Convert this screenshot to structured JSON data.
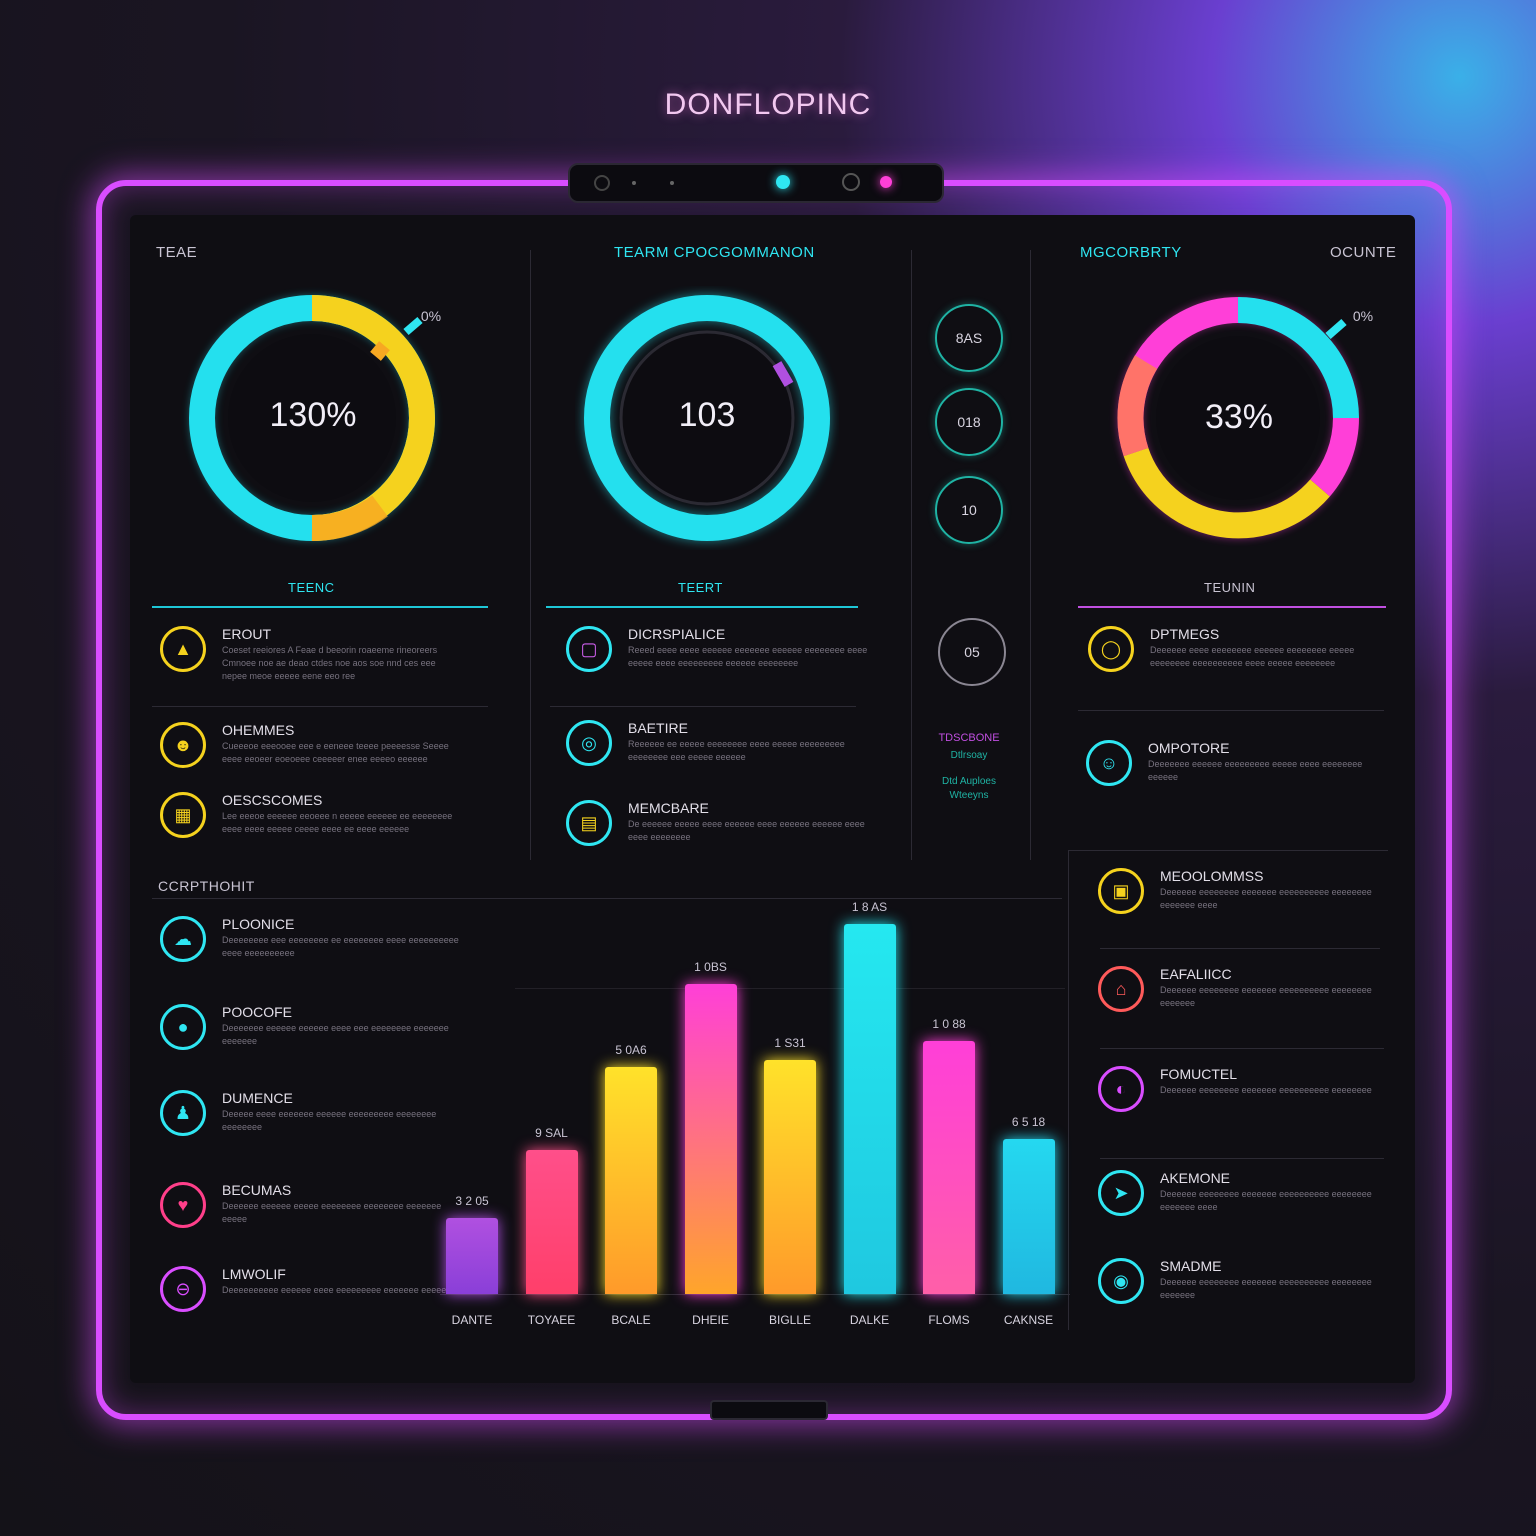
{
  "brand": "DONFLOPINC",
  "columns": {
    "left_label": "TEAE",
    "center_label": "TEARM CPOCGOMMANON",
    "right_label": "MGCORBRTY",
    "far_right_label": "OCUNTE"
  },
  "donuts": [
    {
      "value": "130%",
      "caption": "TEENC",
      "pct_label": "0%"
    },
    {
      "value": "103",
      "caption": "TEERT"
    },
    {
      "value": "33%",
      "caption": "TEUNIN",
      "pct_label": "0%"
    }
  ],
  "small_rings": [
    "8AS",
    "018",
    "10",
    "05"
  ],
  "mid_note": {
    "title": "TDSCBONE",
    "line1": "Dtlrsoay",
    "line2": "Dtd Auploes",
    "line3": "Wteeyns"
  },
  "left_items": [
    {
      "title": "EROUT",
      "desc": "Coeset reeiores A Feae d beeorin roaeeme rineoreers Cmnoee noe ae deao ctdes noe aos soe nnd ces eee nepee meoe eeeee eene eeo ree"
    },
    {
      "title": "OHEMMES",
      "desc": "Cueeeoe eeeooee eee e eeneee teeee peeeesse Seeee eeee eeoeer eoeoeee ceeeeer enee eeeeo eeeeee"
    },
    {
      "title": "OESCSCOMES",
      "desc": "Lee eeeoe eeeeee eeoeee n eeeee eeeeee ee eeeeeeee eeee eeee eeeee ceeee eeee ee eeee eeeeee"
    }
  ],
  "center_items": [
    {
      "title": "DICRSPIALICE",
      "desc": "Reeed eeee eeee eeeeee eeeeeee eeeeee eeeeeeee eeee eeeee eeee eeeeeeeee eeeeee eeeeeeee"
    },
    {
      "title": "BAETIRE",
      "desc": "Reeeeee ee eeeee eeeeeeee eeee eeeee eeeeeeeee eeeeeeee eee eeeee eeeeee"
    },
    {
      "title": "MEMCBARE",
      "desc": "De eeeeee eeeee eeee eeeeee eeee eeeeee eeeeee eeee eeee eeeeeeee"
    }
  ],
  "right_items": [
    {
      "title": "DPTMEGS",
      "desc": "Deeeeee eeee eeeeeeee eeeeee eeeeeeee eeeee eeeeeeee eeeeeeeeee eeee eeeee eeeeeeee"
    },
    {
      "title": "OMPOTORE",
      "desc": "Deeeeeee eeeeee eeeeeeeee eeeee eeee eeeeeeee eeeeee"
    }
  ],
  "bottom_left_label": "CCRPTHOHIT",
  "bottom_left_items": [
    {
      "title": "PLOONICE",
      "desc": "Deeeeeeee eee eeeeeeee ee eeeeeeee eeee eeeeeeeeee eeee eeeeeeeeee"
    },
    {
      "title": "POOCOFE",
      "desc": "Deeeeeee eeeeee eeeeee eeee eee eeeeeeee eeeeeee eeeeeee"
    },
    {
      "title": "DUMENCE",
      "desc": "Deeeee eeee eeeeeee eeeeee eeeeeeeee eeeeeeee eeeeeeee"
    },
    {
      "title": "BECUMAS",
      "desc": "Deeeeee eeeeee eeeee eeeeeeee eeeeeeee eeeeeee eeeee"
    },
    {
      "title": "LMWOLIF",
      "desc": "Deeeeeeeeee eeeeee eeee eeeeeeeee eeeeeee eeeee"
    }
  ],
  "bottom_right_items": [
    {
      "title": "MEOOLOMMSS",
      "desc": "Deeeeee eeeeeeee eeeeeee eeeeeeeeee eeeeeeee eeeeeee eeee"
    },
    {
      "title": "EAFALIICC",
      "desc": "Deeeeee eeeeeeee eeeeeee eeeeeeeeee eeeeeeee eeeeeee"
    },
    {
      "title": "FOMUCTEL",
      "desc": "Deeeeee eeeeeeee eeeeeee eeeeeeeeee eeeeeeee"
    },
    {
      "title": "AKEMONE",
      "desc": "Deeeeee eeeeeeee eeeeeee eeeeeeeeee eeeeeeee eeeeeee eeee"
    },
    {
      "title": "SMADME",
      "desc": "Deeeeee eeeeeeee eeeeeee eeeeeeeeee eeeeeeee eeeeeee"
    }
  ],
  "chart_data": {
    "type": "bar",
    "categories": [
      "DANTE",
      "TOYAEE",
      "BCALE",
      "DHEIE",
      "BIGLLE",
      "DALKE",
      "FLOMS",
      "CAKNSE"
    ],
    "value_labels": [
      "3 2 05",
      "9 SAL",
      "5 0A6",
      "1 0BS",
      "1 S31",
      "1 8 AS",
      "1 0 88",
      "6 5 18"
    ],
    "values": [
      20,
      38,
      60,
      82,
      62,
      98,
      67,
      41
    ],
    "colors": [
      [
        "#b050e0",
        "#8a3fd8"
      ],
      [
        "#ff4f8a",
        "#ff3f6a"
      ],
      [
        "#ffe22a",
        "#ff9a2a"
      ],
      [
        "#ff3fd8",
        "#ffa52a"
      ],
      [
        "#ffe22a",
        "#ff9a2a"
      ],
      [
        "#25e8f0",
        "#1fc8e0"
      ],
      [
        "#ff3fd8",
        "#ff5fa8"
      ],
      [
        "#25d8f0",
        "#20b8e0"
      ]
    ],
    "ylim": [
      0,
      100
    ]
  }
}
